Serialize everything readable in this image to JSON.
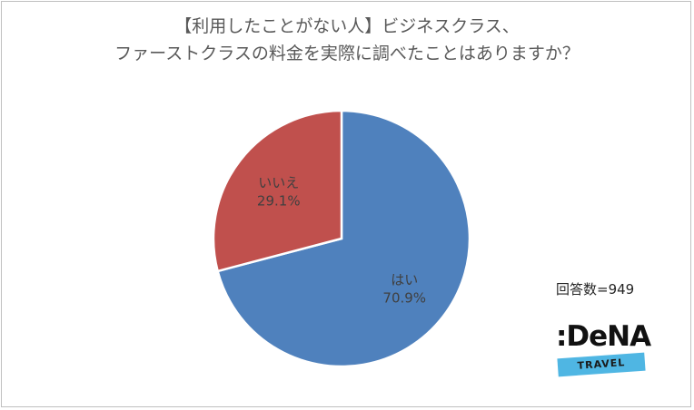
{
  "title": {
    "line1": "【利用したことがない人】ビジネスクラス、",
    "line2": "ファーストクラスの料金を実際に調べたことはありますか？"
  },
  "respondent_count": "回答数=949",
  "logo": {
    "main": ":DeNA",
    "band": "TRAVEL"
  },
  "colors": {
    "yes": "#4f81bd",
    "no": "#c0504d"
  },
  "chart_data": {
    "type": "pie",
    "title": "【利用したことがない人】ビジネスクラス、ファーストクラスの料金を実際に調べたことはありますか？",
    "slices": [
      {
        "label": "はい",
        "value": 70.9,
        "value_text": "70.9%",
        "color": "#4f81bd"
      },
      {
        "label": "いいえ",
        "value": 29.1,
        "value_text": "29.1%",
        "color": "#c0504d"
      }
    ],
    "start": "12 o'clock",
    "direction": "clockwise"
  }
}
